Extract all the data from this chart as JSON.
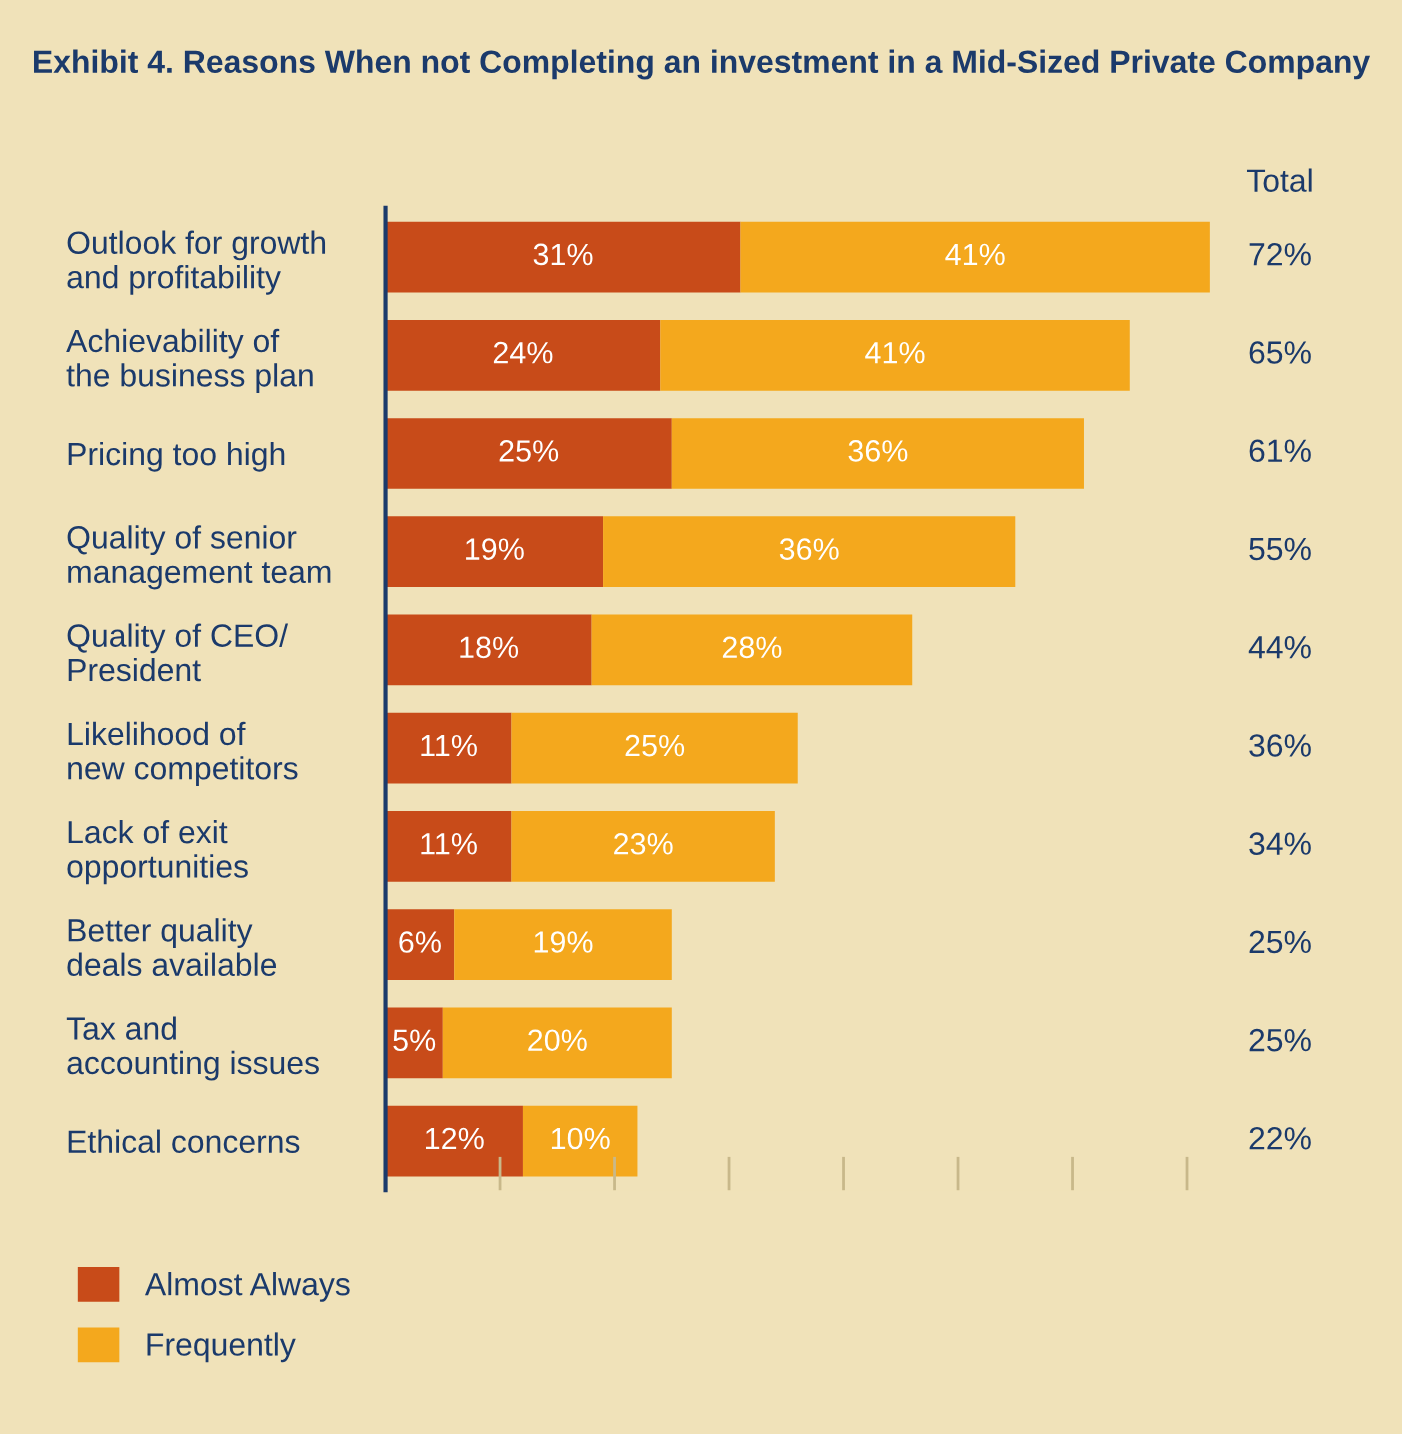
{
  "chart_data": {
    "type": "bar",
    "orientation": "horizontal",
    "stacked": true,
    "title": "Exhibit 4. Reasons When not Completing an investment in a Mid-Sized Private Company",
    "categories": [
      "Outlook for growth\nand profitability",
      "Achievability of\nthe business plan",
      "Pricing too high",
      "Quality of senior\nmanagement team",
      "Quality of CEO/\nPresident",
      "Likelihood of\nnew competitors",
      "Lack of exit\nopportunities",
      "Better quality\ndeals available",
      "Tax and\naccounting issues",
      "Ethical concerns"
    ],
    "series": [
      {
        "name": "Almost Always",
        "color": "#c84b19",
        "values": [
          31,
          24,
          25,
          19,
          18,
          11,
          11,
          6,
          5,
          12
        ],
        "value_labels": [
          "31%",
          "24%",
          "25%",
          "19%",
          "18%",
          "11%",
          "11%",
          "6%",
          "5%",
          "12%"
        ]
      },
      {
        "name": "Frequently",
        "color": "#f4a81d",
        "values": [
          41,
          41,
          36,
          36,
          28,
          25,
          23,
          19,
          20,
          10
        ],
        "value_labels": [
          "41%",
          "41%",
          "36%",
          "36%",
          "28%",
          "25%",
          "23%",
          "19%",
          "20%",
          "10%"
        ]
      }
    ],
    "annotations": [
      "Total",
      "72%",
      "65%",
      "61%",
      "55%",
      "44%",
      "36%",
      "34%",
      "25%",
      "25%",
      "22%"
    ],
    "tick_labels": "y",
    "grid": false,
    "legend": "bottom left"
  }
}
